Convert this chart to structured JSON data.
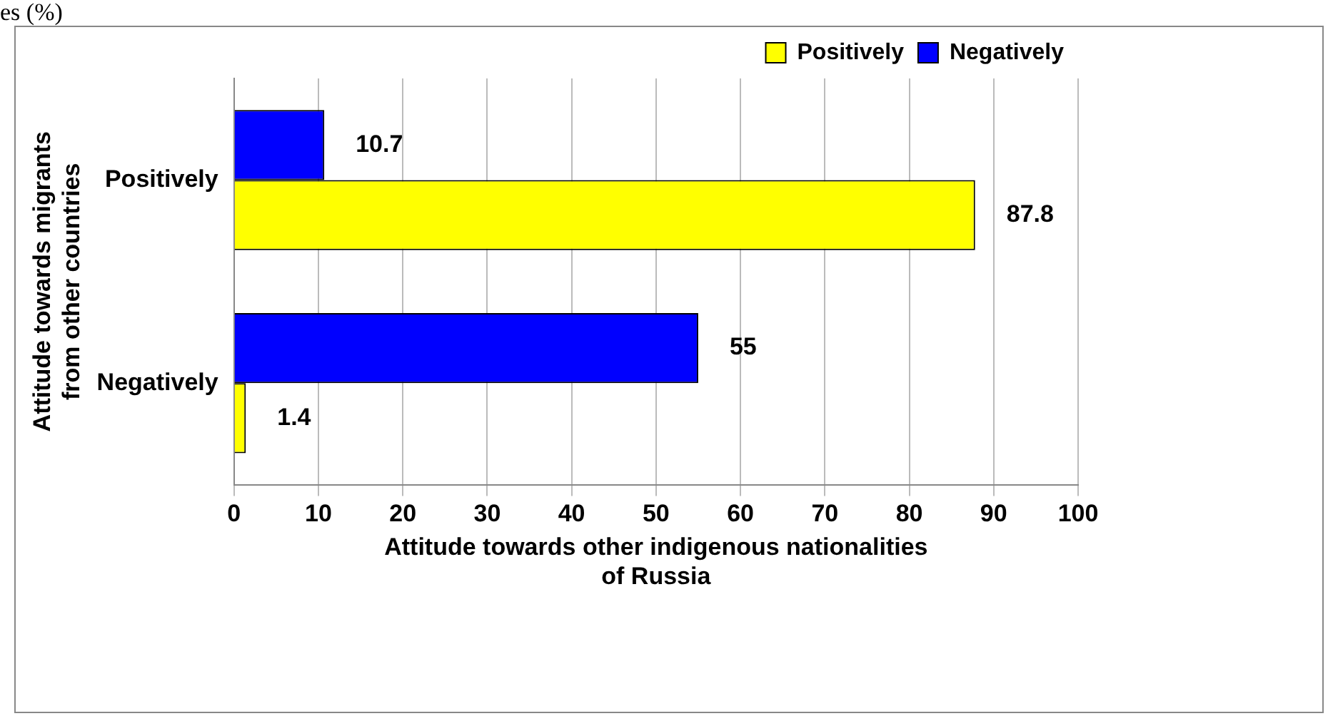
{
  "chart_data": {
    "type": "bar",
    "orientation": "horizontal",
    "title": "es (%)",
    "categories": [
      "Positively",
      "Negatively"
    ],
    "series": [
      {
        "name": "Positively",
        "color": "#ffff00",
        "values": [
          87.8,
          1.4
        ]
      },
      {
        "name": "Negatively",
        "color": "#0000ff",
        "values": [
          10.7,
          55
        ]
      }
    ],
    "xlim": [
      0,
      100
    ],
    "xticks": [
      0,
      10,
      20,
      30,
      40,
      50,
      60,
      70,
      80,
      90,
      100
    ],
    "grid": "x",
    "legend": "top right",
    "data_labels": true,
    "xlabel": "Attitude towards other indigenous nationalities of Russia",
    "ylabel": "Attitude towards migrants from other countries"
  }
}
